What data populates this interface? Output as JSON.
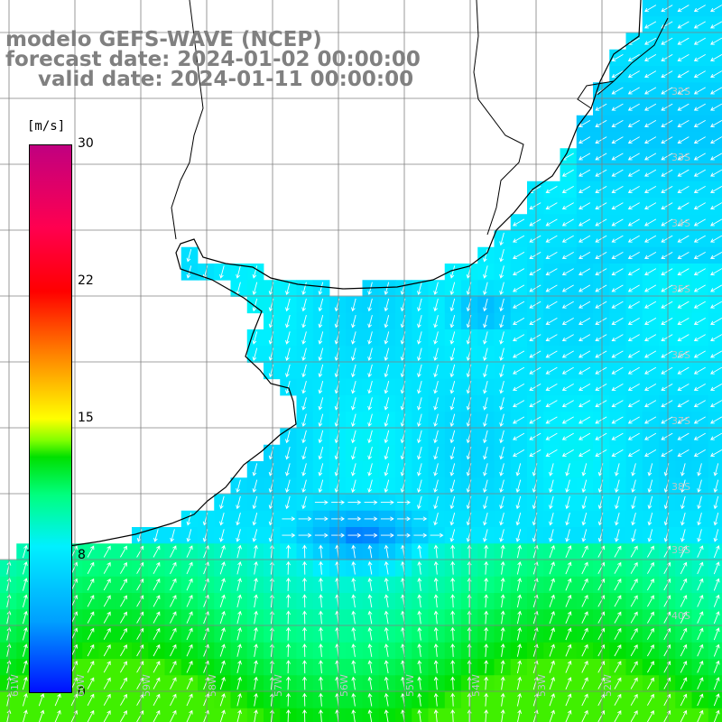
{
  "title": {
    "line1": "modelo GEFS-WAVE (NCEP)",
    "line2": "forecast date: 2024-01-02 00:00:00",
    "line3": "valid date: 2024-01-11 00:00:00"
  },
  "colorbar": {
    "unit": "[m/s]",
    "ticks": [
      "30",
      "22",
      "15",
      "8",
      "0"
    ],
    "tick_values": [
      30,
      22,
      15,
      8,
      0
    ],
    "min": 0,
    "max": 30
  },
  "map": {
    "lat_labels": [
      "32S",
      "33S",
      "34S",
      "35S",
      "36S",
      "37S",
      "38S",
      "39S",
      "40S"
    ],
    "lon_labels": [
      "61W",
      "60W",
      "59W",
      "58W",
      "57W",
      "56W",
      "55W",
      "54W",
      "53W",
      "52W"
    ],
    "colors": {
      "land": "#ffffff",
      "coast": "#000000",
      "grid": "#808080",
      "arrow": "#ffffff"
    }
  }
}
